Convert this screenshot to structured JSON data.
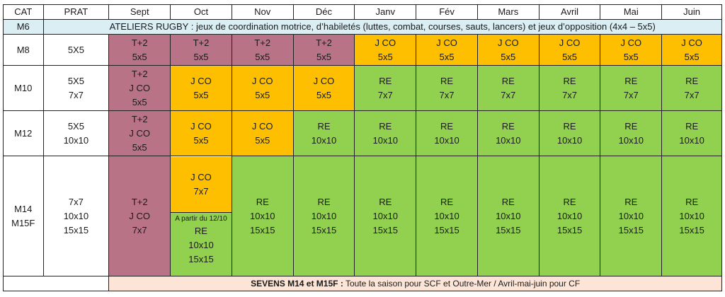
{
  "headers": [
    "CAT",
    "PRAT",
    "Sept",
    "Oct",
    "Nov",
    "Déc",
    "Janv",
    "Fév",
    "Mars",
    "Avril",
    "Mai",
    "Juin"
  ],
  "m6": {
    "cat": "M6",
    "text": "ATELIERS RUGBY : jeux de coordination motrice, d’habiletés (luttes, combat, courses, sauts, lancers) et jeux d’opposition (4x4 – 5x5)"
  },
  "m8": {
    "cat": "M8",
    "prat": [
      "5X5"
    ],
    "cells": [
      [
        "T+2",
        "5x5"
      ],
      [
        "T+2",
        "5x5"
      ],
      [
        "T+2",
        "5x5"
      ],
      [
        "T+2",
        "5x5"
      ],
      [
        "J CO",
        "5x5"
      ],
      [
        "J CO",
        "5x5"
      ],
      [
        "J CO",
        "5x5"
      ],
      [
        "J CO",
        "5x5"
      ],
      [
        "J CO",
        "5x5"
      ],
      [
        "J CO",
        "5x5"
      ]
    ]
  },
  "m10": {
    "cat": "M10",
    "prat": [
      "5X5",
      "7x7"
    ],
    "sept": [
      "T+2",
      "J CO",
      "5x5"
    ],
    "cells": [
      [
        "J CO",
        "5x5"
      ],
      [
        "J CO",
        "5x5"
      ],
      [
        "J CO",
        "5x5"
      ],
      [
        "RE",
        "7x7"
      ],
      [
        "RE",
        "7x7"
      ],
      [
        "RE",
        "7x7"
      ],
      [
        "RE",
        "7x7"
      ],
      [
        "RE",
        "7x7"
      ],
      [
        "RE",
        "7x7"
      ]
    ]
  },
  "m12": {
    "cat": "M12",
    "prat": [
      "5X5",
      "10x10"
    ],
    "sept": [
      "T+2",
      "J CO",
      "5x5"
    ],
    "cells": [
      [
        "J CO",
        "5x5"
      ],
      [
        "J CO",
        "5x5"
      ],
      [
        "RE",
        "10x10"
      ],
      [
        "RE",
        "10x10"
      ],
      [
        "RE",
        "10x10"
      ],
      [
        "RE",
        "10x10"
      ],
      [
        "RE",
        "10x10"
      ],
      [
        "RE",
        "10x10"
      ],
      [
        "RE",
        "10x10"
      ]
    ]
  },
  "m14": {
    "cat": [
      "M14",
      "M15F"
    ],
    "prat": [
      "7x7",
      "10x10",
      "15x15"
    ],
    "sept": [
      "T+2",
      "J CO",
      "7x7"
    ],
    "oct_top": [
      "J CO",
      "7x7"
    ],
    "oct_note": "A partir du 12/10",
    "oct_bot": [
      "RE",
      "10x10",
      "15x15"
    ],
    "cells": [
      "RE",
      "10x10",
      "15x15"
    ]
  },
  "sevens": {
    "bold": "SEVENS M14 et M15F :",
    "text": " Toute la saison pour SCF et Outre-Mer / Avril-mai-juin pour CF"
  }
}
